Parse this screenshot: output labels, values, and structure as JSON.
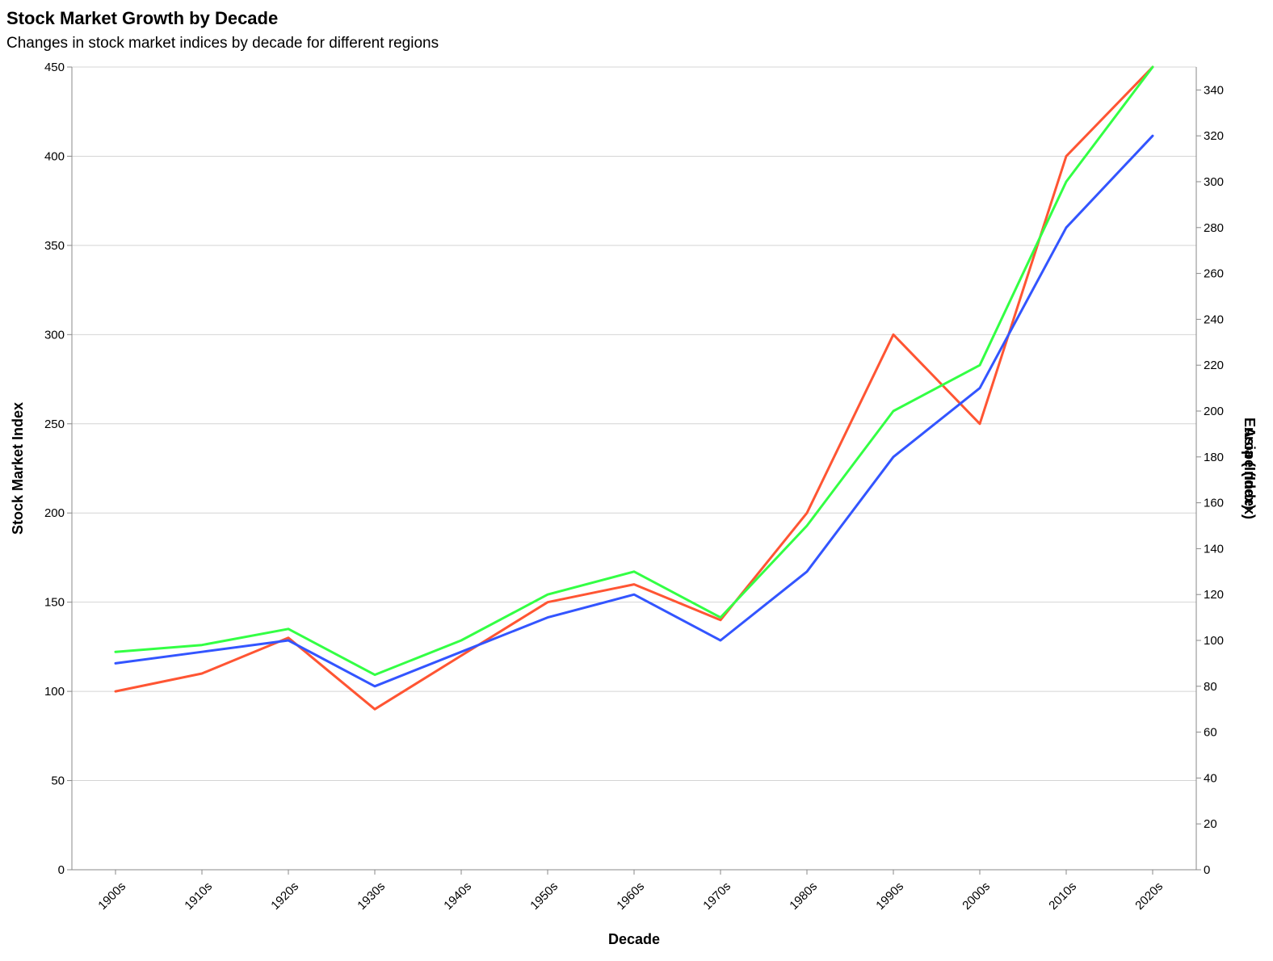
{
  "chart_data": {
    "type": "line",
    "title": "Stock Market Growth by Decade",
    "subtitle": "Changes in stock market indices by decade for different regions",
    "xlabel": "Decade",
    "ylabel": "Stock Market Index",
    "y2label_overlap": [
      "Europe (Index)",
      "Asia (Index)"
    ],
    "categories": [
      "1900s",
      "1910s",
      "1920s",
      "1930s",
      "1940s",
      "1950s",
      "1960s",
      "1970s",
      "1980s",
      "1990s",
      "2000s",
      "2010s",
      "2020s"
    ],
    "left_axis": {
      "ylim": [
        0,
        450
      ],
      "ticks": [
        0,
        50,
        100,
        150,
        200,
        250,
        300,
        350,
        400,
        450
      ]
    },
    "right_axis": {
      "ylim": [
        0,
        350
      ],
      "ticks": [
        0,
        20,
        40,
        60,
        80,
        100,
        120,
        140,
        160,
        180,
        200,
        220,
        240,
        260,
        280,
        300,
        320,
        340
      ]
    },
    "grid": true,
    "series": [
      {
        "axis": "left",
        "color": "#ff5533",
        "values": [
          100,
          110,
          130,
          90,
          120,
          150,
          160,
          140,
          200,
          300,
          250,
          400,
          450
        ]
      },
      {
        "axis": "right",
        "color": "#3355ff",
        "values": [
          90,
          95,
          100,
          80,
          95,
          110,
          120,
          100,
          130,
          180,
          210,
          280,
          320
        ]
      },
      {
        "axis": "right",
        "color": "#33ff44",
        "values": [
          95,
          98,
          105,
          85,
          100,
          120,
          130,
          110,
          150,
          200,
          220,
          300,
          350
        ]
      }
    ]
  }
}
